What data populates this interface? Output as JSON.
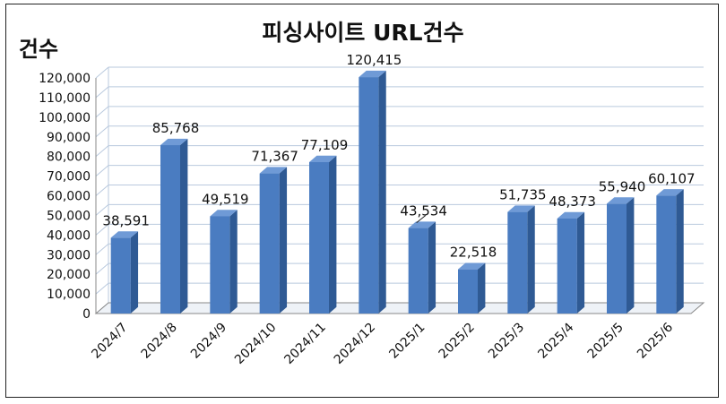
{
  "chart_data": {
    "type": "bar",
    "title": "피싱사이트 URL건수",
    "ylabel": "건수",
    "xlabel": "",
    "categories": [
      "2024/7",
      "2024/8",
      "2024/9",
      "2024/10",
      "2024/11",
      "2024/12",
      "2025/1",
      "2025/2",
      "2025/3",
      "2025/4",
      "2025/5",
      "2025/6"
    ],
    "values": [
      38591,
      85768,
      49519,
      71367,
      77109,
      120415,
      43534,
      22518,
      51735,
      48373,
      55940,
      60107
    ],
    "value_labels": [
      "38,591",
      "85,768",
      "49,519",
      "71,367",
      "77,109",
      "120,415",
      "43,534",
      "22,518",
      "51,735",
      "48,373",
      "55,940",
      "60,107"
    ],
    "ylim": [
      0,
      120000
    ],
    "yticks": [
      0,
      10000,
      20000,
      30000,
      40000,
      50000,
      60000,
      70000,
      80000,
      90000,
      100000,
      110000,
      120000
    ],
    "ytick_labels": [
      "0",
      "10,000",
      "20,000",
      "30,000",
      "40,000",
      "50,000",
      "60,000",
      "70,000",
      "80,000",
      "90,000",
      "100,000",
      "110,000",
      "120,000"
    ],
    "grid": true,
    "legend": "none",
    "style": "3d-column",
    "colors": {
      "bar_front": "#4a7cc1",
      "bar_side": "#2f5a94",
      "bar_top": "#6f9ad6",
      "grid": "#b9c9de",
      "axis": "#888888"
    }
  }
}
